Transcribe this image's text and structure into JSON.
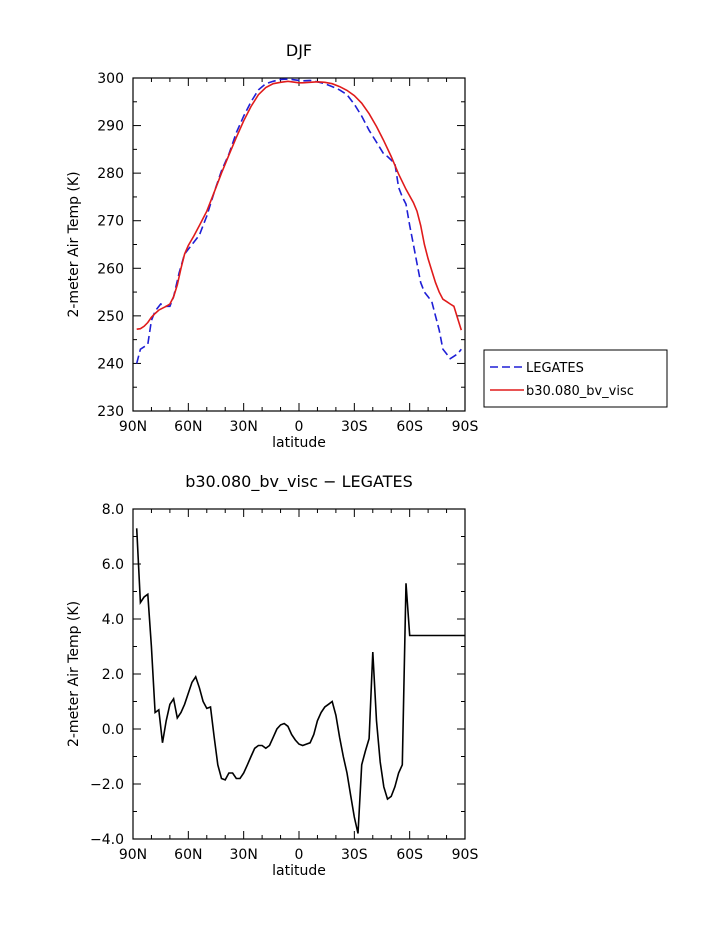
{
  "chart_data": [
    {
      "type": "line",
      "title": "DJF",
      "xlabel": "latitude",
      "ylabel": "2-meter Air Temp (K)",
      "xlim": [
        90,
        -90
      ],
      "ylim": [
        230,
        300
      ],
      "x_ticks": [
        90,
        60,
        30,
        0,
        -30,
        -60,
        -90
      ],
      "x_tick_labels": [
        "90N",
        "60N",
        "30N",
        "0",
        "30S",
        "60S",
        "90S"
      ],
      "y_ticks": [
        230,
        240,
        250,
        260,
        270,
        280,
        290,
        300
      ],
      "y_tick_labels": [
        "230",
        "240",
        "250",
        "260",
        "270",
        "280",
        "290",
        "300"
      ],
      "legend_position": "right",
      "grid": false,
      "series": [
        {
          "name": "LEGATES",
          "color": "#1f1fd6",
          "dash": "dashed",
          "x": [
            88,
            86,
            82,
            80,
            78,
            75,
            72,
            70,
            68,
            65,
            62,
            60,
            57,
            54,
            50,
            46,
            42,
            38,
            34,
            30,
            26,
            22,
            18,
            14,
            10,
            6,
            2,
            0,
            -2,
            -6,
            -10,
            -14,
            -18,
            -22,
            -26,
            -30,
            -34,
            -38,
            -42,
            -46,
            -48,
            -52,
            -54,
            -56,
            -58,
            -60,
            -62,
            -64,
            -66,
            -68,
            -70,
            -72,
            -74,
            -76,
            -78,
            -80,
            -82,
            -84,
            -86,
            -88
          ],
          "y": [
            240,
            243,
            244,
            249,
            251,
            252.5,
            252,
            252,
            254,
            259,
            263,
            264,
            265.5,
            267,
            271,
            276,
            280.5,
            284,
            288.5,
            292,
            295,
            297.5,
            298.8,
            299.3,
            299.7,
            299.8,
            299.6,
            299.5,
            299.4,
            299.5,
            299.2,
            298.8,
            298.2,
            297.5,
            296.5,
            294.5,
            292,
            289,
            286.5,
            284,
            283.5,
            282,
            277,
            275,
            273.5,
            269,
            265,
            261,
            257,
            255,
            254,
            253,
            250,
            247,
            243,
            242,
            241,
            241.5,
            242,
            243
          ]
        },
        {
          "name": "b30.080_bv_visc",
          "color": "#e01b1b",
          "dash": "solid",
          "x": [
            88,
            86,
            84,
            82,
            80,
            78,
            76,
            74,
            72,
            70,
            68,
            66,
            64,
            62,
            60,
            57,
            54,
            50,
            46,
            42,
            38,
            34,
            30,
            26,
            22,
            18,
            14,
            10,
            6,
            2,
            0,
            -2,
            -6,
            -10,
            -14,
            -18,
            -22,
            -26,
            -30,
            -34,
            -38,
            -42,
            -46,
            -50,
            -54,
            -58,
            -62,
            -64,
            -66,
            -68,
            -70,
            -72,
            -74,
            -76,
            -78,
            -80,
            -82,
            -84,
            -86,
            -88
          ],
          "y": [
            247.2,
            247.3,
            247.8,
            248.6,
            249.7,
            250.5,
            251.2,
            251.6,
            252,
            252.5,
            254,
            256.5,
            260,
            263,
            264.8,
            266.8,
            269,
            272,
            276,
            280,
            283.8,
            287.5,
            291,
            294,
            296.5,
            298,
            298.8,
            299.1,
            299.3,
            299.1,
            299.0,
            299.0,
            299.1,
            299.2,
            299.1,
            298.8,
            298.2,
            297.4,
            296.3,
            294.7,
            292.5,
            289.8,
            286.8,
            283.5,
            279.8,
            276.6,
            273.8,
            272,
            269,
            265,
            262,
            259.5,
            257,
            255,
            253.5,
            253,
            252.5,
            252,
            249.5,
            247
          ]
        }
      ]
    },
    {
      "type": "line",
      "title": "b30.080_bv_visc − LEGATES",
      "xlabel": "latitude",
      "ylabel": "2-meter Air Temp (K)",
      "xlim": [
        90,
        -90
      ],
      "ylim": [
        -4.0,
        8.0
      ],
      "x_ticks": [
        90,
        60,
        30,
        0,
        -30,
        -60,
        -90
      ],
      "x_tick_labels": [
        "90N",
        "60N",
        "30N",
        "0",
        "30S",
        "60S",
        "90S"
      ],
      "y_ticks": [
        -4.0,
        -2.0,
        0.0,
        2.0,
        4.0,
        6.0,
        8.0
      ],
      "y_tick_labels": [
        "−4.0",
        "−2.0",
        "0.0",
        "2.0",
        "4.0",
        "6.0",
        "8.0"
      ],
      "grid": false,
      "series": [
        {
          "color": "#000000",
          "dash": "solid",
          "x": [
            88,
            86,
            84,
            82,
            80,
            78,
            76,
            74,
            72,
            70,
            68,
            66,
            64,
            62,
            60,
            58,
            56,
            54,
            52,
            50,
            48,
            46,
            44,
            42,
            40,
            38,
            36,
            34,
            32,
            30,
            28,
            26,
            24,
            22,
            20,
            18,
            16,
            14,
            12,
            10,
            8,
            6,
            4,
            2,
            0,
            -2,
            -4,
            -6,
            -8,
            -10,
            -12,
            -14,
            -16,
            -18,
            -20,
            -22,
            -24,
            -26,
            -28,
            -30,
            -32,
            -34,
            -36,
            -38,
            -40,
            -42,
            -44,
            -46,
            -48,
            -50,
            -52,
            -54,
            -56,
            -58,
            -60,
            -62,
            -64,
            -66,
            -68,
            -70,
            -72,
            -74,
            -76,
            -78,
            -80,
            -82,
            -84,
            -86,
            -88,
            -90
          ],
          "y": [
            7.3,
            4.6,
            4.8,
            4.9,
            3.0,
            0.6,
            0.7,
            -0.5,
            0.3,
            0.9,
            1.1,
            0.4,
            0.6,
            0.9,
            1.3,
            1.7,
            1.9,
            1.5,
            1.0,
            0.75,
            0.8,
            -0.3,
            -1.3,
            -1.8,
            -1.85,
            -1.6,
            -1.6,
            -1.8,
            -1.8,
            -1.6,
            -1.3,
            -1.0,
            -0.7,
            -0.6,
            -0.6,
            -0.7,
            -0.6,
            -0.3,
            0.0,
            0.15,
            0.2,
            0.1,
            -0.2,
            -0.4,
            -0.55,
            -0.6,
            -0.55,
            -0.5,
            -0.2,
            0.3,
            0.6,
            0.8,
            0.9,
            1.0,
            0.5,
            -0.3,
            -1.0,
            -1.6,
            -2.4,
            -3.2,
            -3.8,
            -1.3,
            -0.8,
            -0.35,
            2.8,
            0.3,
            -1.2,
            -2.1,
            -2.55,
            -2.45,
            -2.1,
            -1.6,
            -1.3,
            5.3,
            3.4,
            3.4,
            3.4,
            3.4,
            3.4,
            3.4,
            3.4,
            3.4,
            3.4,
            3.4,
            3.4,
            3.4,
            3.4,
            3.4,
            3.4,
            3.4
          ]
        }
      ]
    }
  ]
}
